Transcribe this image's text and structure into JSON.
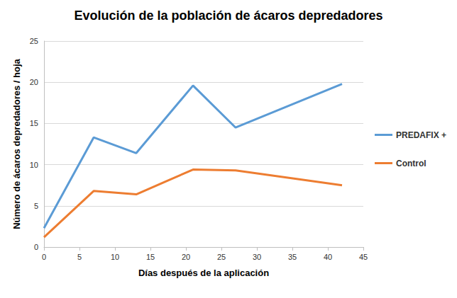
{
  "chart_data": {
    "type": "line",
    "title": "Evolución de la población de ácaros depredadores",
    "x_label": "Días después de la aplicación",
    "y_label": "Número de ácaros depredadores / hoja",
    "x": [
      0,
      7,
      13,
      21,
      27,
      42
    ],
    "series": [
      {
        "name": "PREDAFIX +",
        "color": "#5b9bd5",
        "values": [
          2.3,
          13.3,
          11.4,
          19.6,
          14.5,
          19.8
        ]
      },
      {
        "name": "Control",
        "color": "#ed7d31",
        "values": [
          1.2,
          6.8,
          6.4,
          9.4,
          9.3,
          7.5
        ]
      }
    ],
    "xlim": [
      0,
      45
    ],
    "xticks": [
      0,
      5,
      10,
      15,
      20,
      25,
      30,
      35,
      40,
      45
    ],
    "ylim": [
      0,
      25
    ],
    "yticks": [
      0,
      5,
      10,
      15,
      20,
      25
    ],
    "grid": "y",
    "legend": "right"
  }
}
